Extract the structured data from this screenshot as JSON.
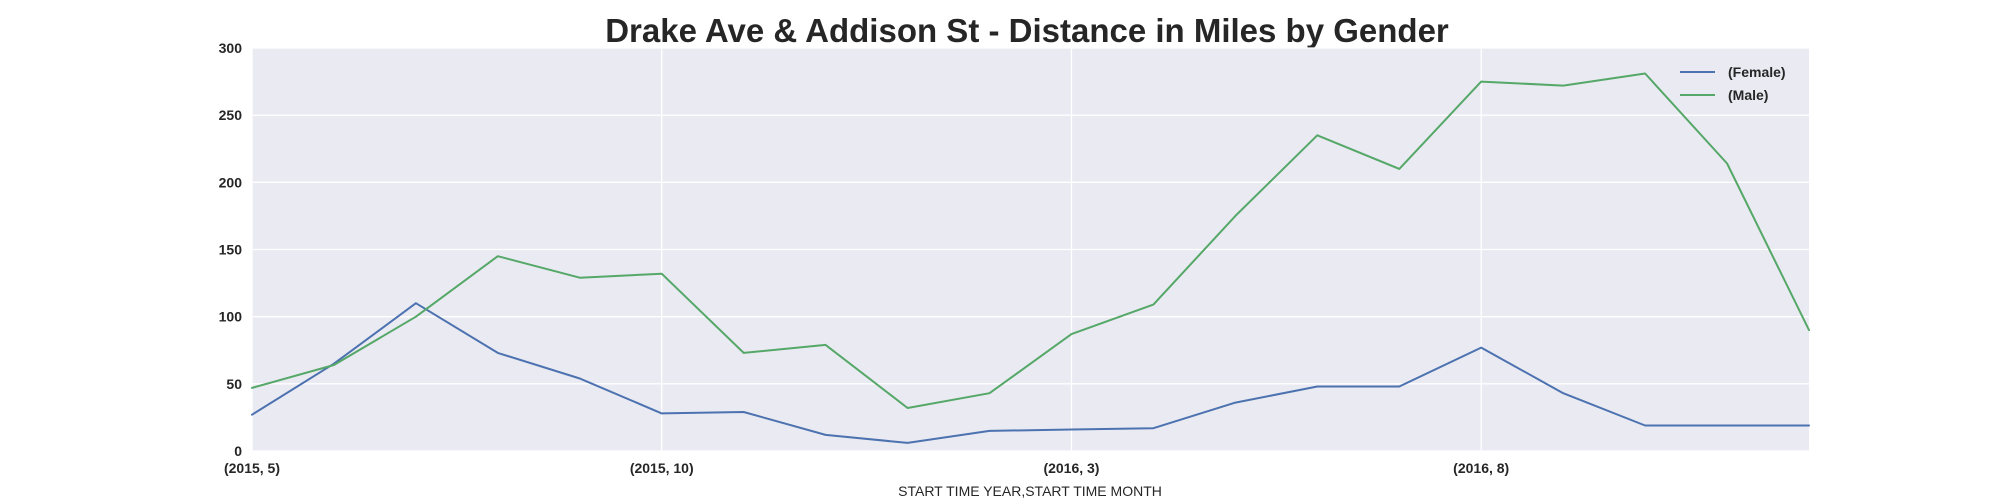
{
  "chart_data": {
    "type": "line",
    "title": "Drake Ave & Addison St - Distance in Miles by Gender",
    "xlabel": "START TIME YEAR,START TIME MONTH",
    "ylabel": "",
    "x": [
      "(2015, 5)",
      "(2015, 6)",
      "(2015, 7)",
      "(2015, 8)",
      "(2015, 9)",
      "(2015, 10)",
      "(2015, 11)",
      "(2015, 12)",
      "(2016, 1)",
      "(2016, 2)",
      "(2016, 3)",
      "(2016, 4)",
      "(2016, 5)",
      "(2016, 6)",
      "(2016, 7)",
      "(2016, 8)",
      "(2016, 9)",
      "(2016, 10)",
      "(2016, 11)",
      "(2016, 12)"
    ],
    "xticks": [
      "(2015, 5)",
      "(2015, 10)",
      "(2016, 3)",
      "(2016, 8)"
    ],
    "ylim": [
      0,
      300
    ],
    "yticks": [
      0,
      50,
      100,
      150,
      200,
      250,
      300
    ],
    "grid": true,
    "legend_position": "top-right",
    "series": [
      {
        "name": "(Female)",
        "color": "#4c72b0",
        "values": [
          27,
          65,
          110,
          73,
          54,
          28,
          29,
          12,
          6,
          15,
          16,
          17,
          36,
          48,
          48,
          77,
          43,
          19,
          19,
          19
        ]
      },
      {
        "name": "(Male)",
        "color": "#55a868",
        "values": [
          47,
          64,
          100,
          145,
          129,
          132,
          73,
          79,
          32,
          43,
          87,
          109,
          175,
          235,
          210,
          275,
          272,
          281,
          214,
          90
        ]
      }
    ],
    "colors": {
      "plot_background": "#eaeaf2",
      "grid": "#ffffff",
      "text": "#262626"
    }
  }
}
